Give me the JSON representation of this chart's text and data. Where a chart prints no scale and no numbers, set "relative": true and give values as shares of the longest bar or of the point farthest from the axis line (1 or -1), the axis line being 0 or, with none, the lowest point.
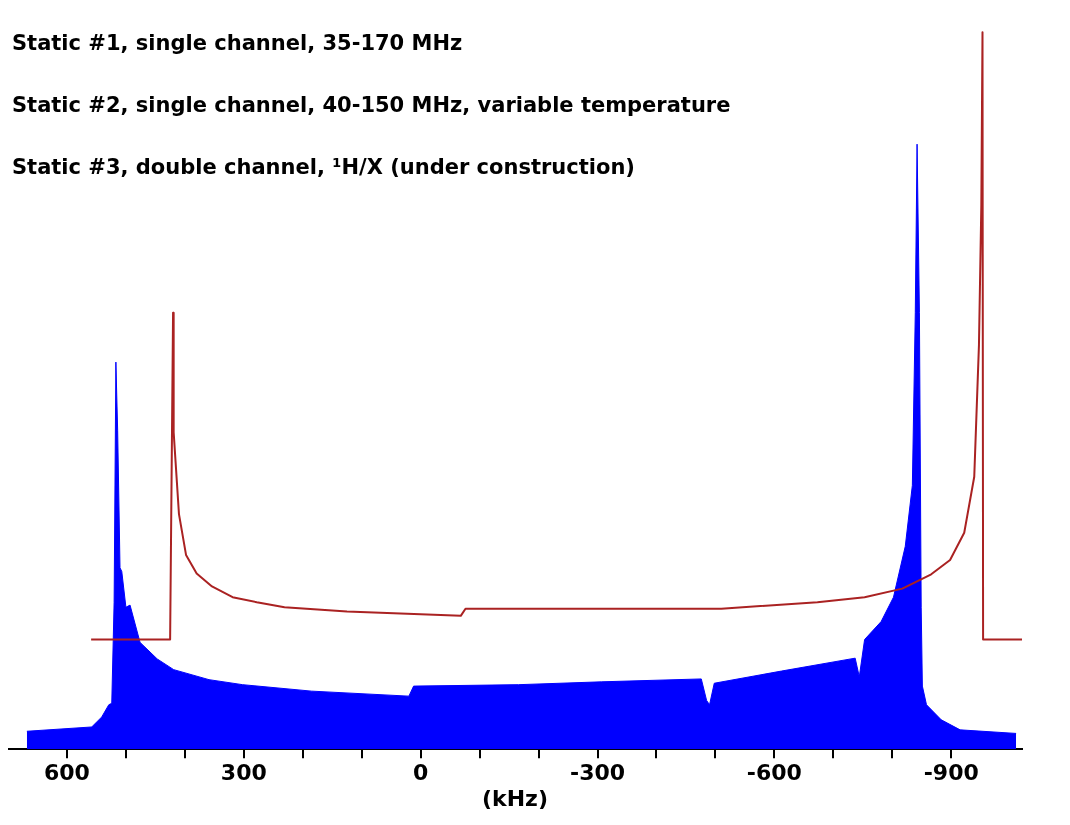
{
  "chart_data": {
    "type": "line",
    "relative": true,
    "xlabel": "(kHz)",
    "annotations": [
      "Static #1, single channel, 35-170 MHz",
      "Static #2, single channel, 40-150 MHz, variable temperature",
      "Static #3, double channel, ¹H/X (under construction)"
    ],
    "xlim": [
      700,
      -1020
    ],
    "xticks": [
      600,
      {
        "value": 500,
        "label": null
      },
      {
        "value": 400,
        "label": null
      },
      300,
      {
        "value": 200,
        "label": null
      },
      {
        "value": 100,
        "label": null
      },
      0,
      {
        "value": -100,
        "label": null
      },
      {
        "value": -200,
        "label": null
      },
      -300,
      {
        "value": -400,
        "label": null
      },
      {
        "value": -500,
        "label": null
      },
      -600,
      {
        "value": -700,
        "label": null
      },
      {
        "value": -800,
        "label": null
      },
      -900
    ],
    "grid": false,
    "series": [
      {
        "type": "area",
        "color": "#0000ff",
        "x": [
          668,
          558,
          541,
          529,
          524,
          520,
          517,
          514,
          510,
          507,
          500,
          493,
          476,
          447,
          419,
          359,
          302,
          185,
          20,
          12,
          -166,
          -307,
          -476,
          -485,
          -490,
          -498,
          -612,
          -737,
          -744,
          -753,
          -781,
          -802,
          -822,
          -834,
          -839,
          -842,
          -846,
          -849,
          -851,
          -858,
          -883,
          -915,
          -1010
        ],
        "values": [
          0.025,
          0.031,
          0.045,
          0.062,
          0.064,
          0.205,
          0.54,
          0.445,
          0.253,
          0.248,
          0.198,
          0.201,
          0.149,
          0.126,
          0.111,
          0.097,
          0.09,
          0.081,
          0.074,
          0.088,
          0.09,
          0.094,
          0.098,
          0.068,
          0.062,
          0.092,
          0.109,
          0.127,
          0.101,
          0.153,
          0.178,
          0.212,
          0.283,
          0.368,
          0.609,
          0.844,
          0.609,
          0.198,
          0.088,
          0.062,
          0.041,
          0.027,
          0.022
        ]
      },
      {
        "type": "line",
        "color": "#aa2222",
        "x": [
          559,
          425,
          420,
          419,
          410,
          398,
          380,
          354,
          319,
          278,
          231,
          125,
          -68,
          -76,
          -202,
          -510,
          -673,
          -753,
          -817,
          -866,
          -898,
          -922,
          -939,
          -947,
          -951,
          -953,
          -954,
          -1020
        ],
        "values": [
          0.153,
          0.153,
          0.609,
          0.442,
          0.328,
          0.271,
          0.245,
          0.227,
          0.212,
          0.205,
          0.198,
          0.192,
          0.186,
          0.196,
          0.196,
          0.196,
          0.205,
          0.212,
          0.224,
          0.244,
          0.264,
          0.302,
          0.38,
          0.564,
          0.759,
          1,
          0.153,
          0.153
        ]
      }
    ]
  }
}
